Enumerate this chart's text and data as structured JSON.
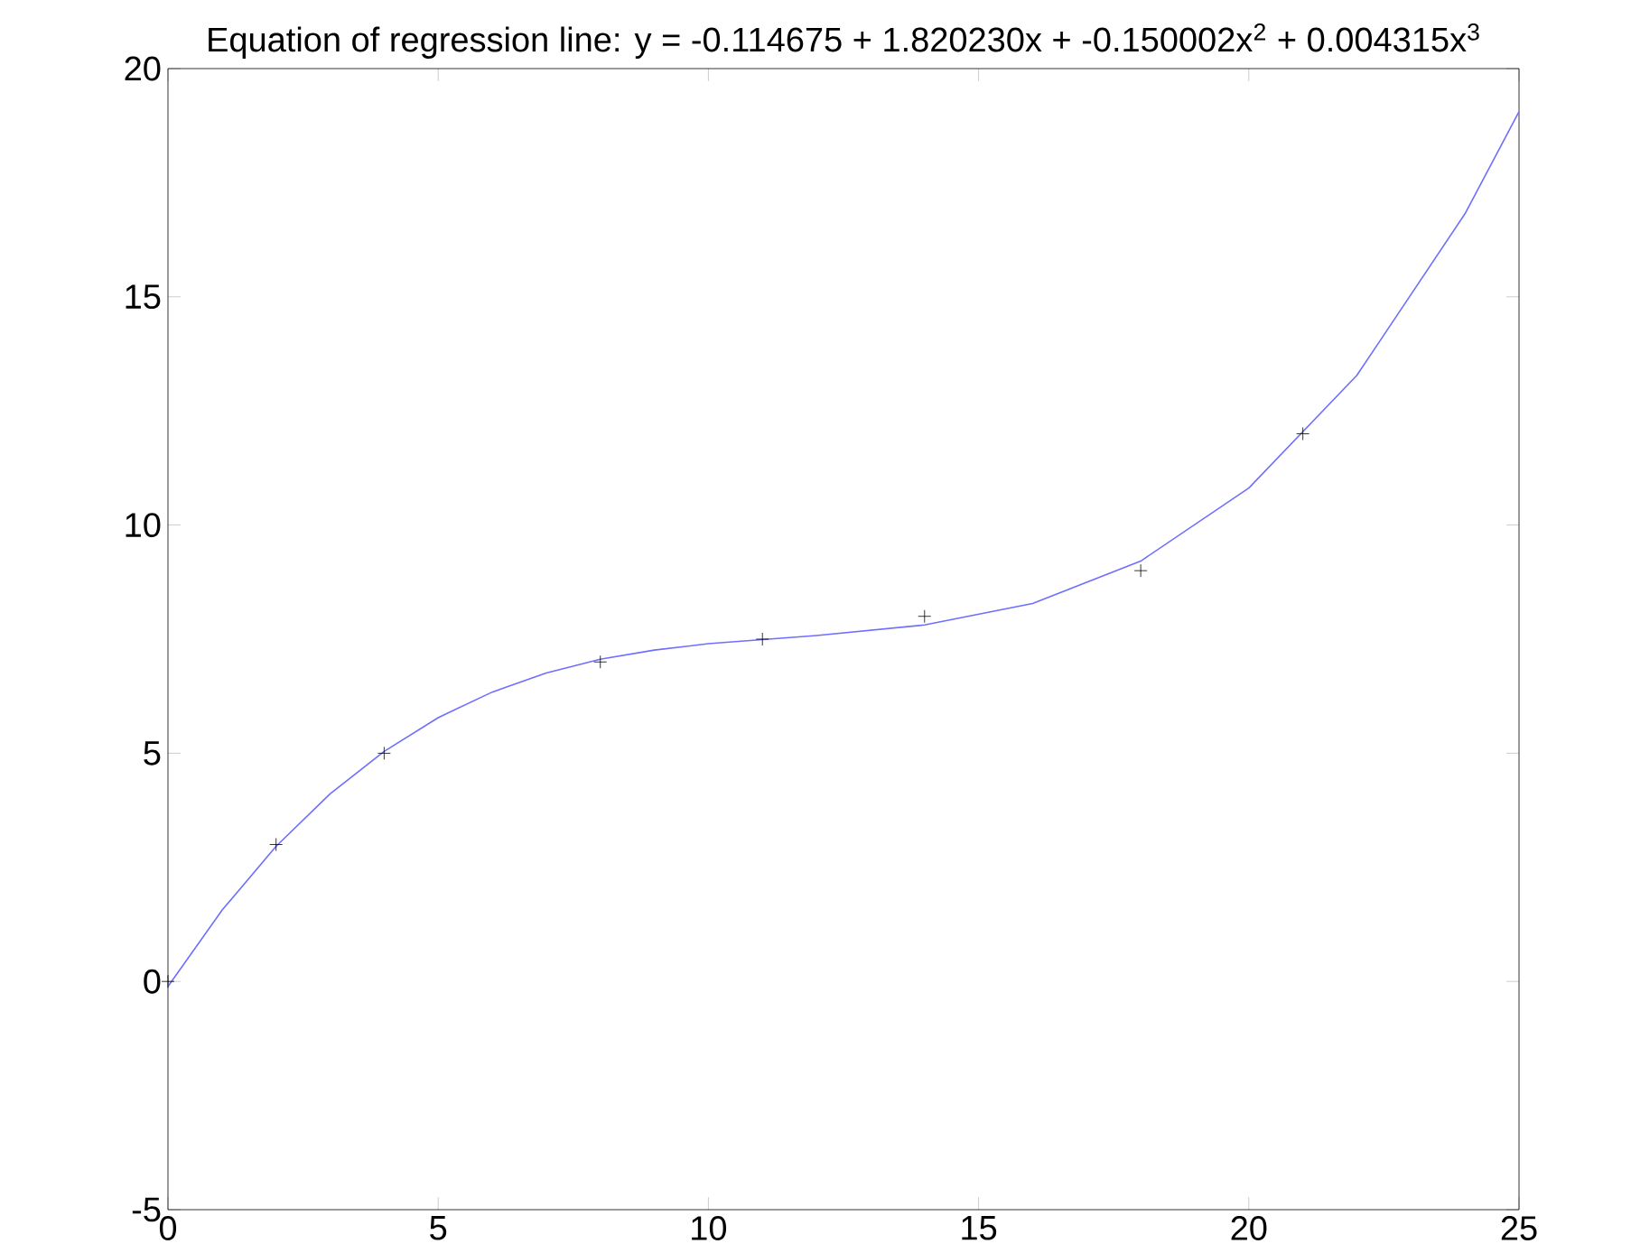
{
  "chart_data": {
    "type": "scatter",
    "title": "Equation of regression line: y = -0.114675 + 1.820230x + -0.150002x$^{2}$ + 0.004315x$^{3}$",
    "xlim": [
      0,
      25
    ],
    "ylim": [
      -5,
      20
    ],
    "xticks": [
      0,
      5,
      10,
      15,
      20,
      25
    ],
    "yticks": [
      -5,
      0,
      5,
      10,
      15,
      20
    ],
    "grid": false,
    "series": [
      {
        "marker": "cross",
        "color": "#000000",
        "x": [
          0,
          2,
          4,
          8,
          11,
          14,
          18,
          21
        ],
        "values": [
          0,
          3,
          5,
          7,
          7.5,
          8,
          9,
          12
        ]
      },
      {
        "type": "line",
        "marker": "none",
        "line_style": "solid",
        "color": "#6e6eff",
        "x": [
          0,
          1,
          2,
          3,
          4,
          5,
          6,
          7,
          8,
          9,
          10,
          12,
          14,
          16,
          18,
          20,
          22,
          24,
          25
        ],
        "values": [
          -0.11,
          1.56,
          2.96,
          4.11,
          5.04,
          5.78,
          6.34,
          6.76,
          7.06,
          7.26,
          7.4,
          7.58,
          7.81,
          8.28,
          9.21,
          10.81,
          13.28,
          16.82,
          19.06
        ]
      }
    ]
  }
}
